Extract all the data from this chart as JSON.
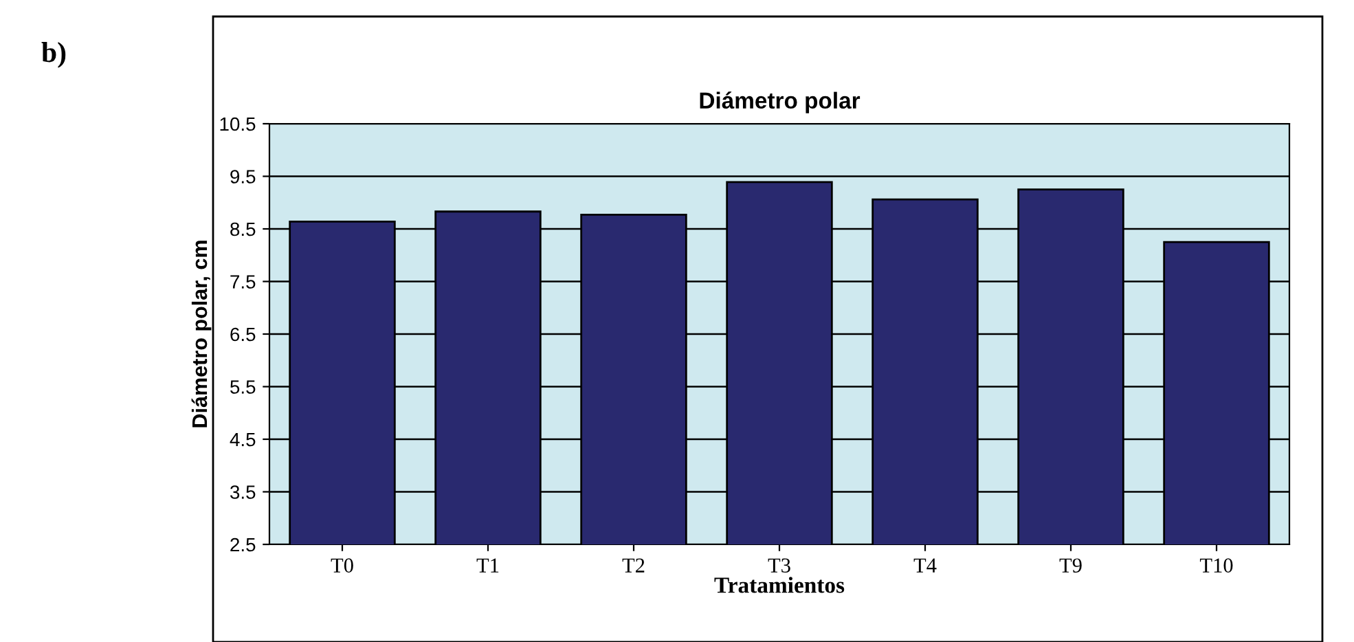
{
  "chart_data": {
    "type": "bar",
    "title": "Diámetro polar",
    "xlabel": "Tratamientos",
    "ylabel": "Diámetro polar, cm",
    "annotations": [
      "b)"
    ],
    "categories": [
      "T0",
      "T1",
      "T2",
      "T3",
      "T4",
      "T9",
      "T10"
    ],
    "values": [
      8.64,
      8.83,
      8.77,
      9.39,
      9.06,
      9.25,
      8.25
    ],
    "color": "#29296f",
    "ylim": [
      2.5,
      10.5
    ],
    "yticks": [
      2.5,
      3.5,
      4.5,
      5.5,
      6.5,
      7.5,
      8.5,
      9.5,
      10.5
    ],
    "grid": "y",
    "bands": [
      {
        "axis": "y",
        "from": 2.5,
        "to": 10.5,
        "color": "#cfe9ef"
      }
    ]
  }
}
